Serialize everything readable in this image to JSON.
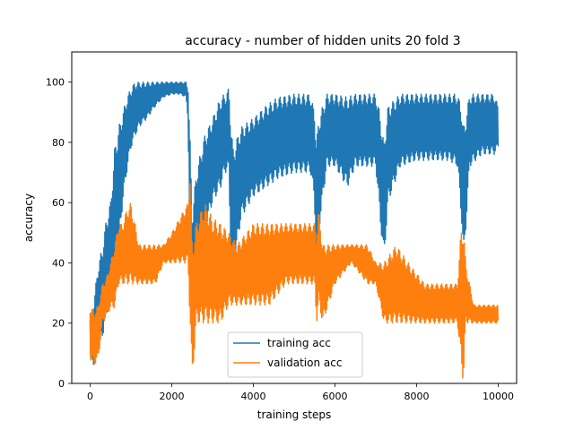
{
  "chart_data": {
    "type": "line",
    "title": "accuracy - number of hidden units 20 fold 3",
    "xlabel": "training steps",
    "ylabel": "accuracy",
    "xlim": [
      -450,
      10450
    ],
    "ylim": [
      0,
      110
    ],
    "xticks": [
      0,
      2000,
      4000,
      6000,
      8000,
      10000
    ],
    "yticks": [
      0,
      20,
      40,
      60,
      80,
      100
    ],
    "grid": false,
    "legend_position": "lower center",
    "series": [
      {
        "name": "training acc",
        "color": "#1f77b4",
        "bands": [
          [
            0,
            8,
            22
          ],
          [
            100,
            6,
            28
          ],
          [
            200,
            10,
            40
          ],
          [
            300,
            15,
            45
          ],
          [
            400,
            22,
            55
          ],
          [
            500,
            28,
            60
          ],
          [
            600,
            35,
            78
          ],
          [
            700,
            45,
            85
          ],
          [
            800,
            60,
            90
          ],
          [
            900,
            70,
            95
          ],
          [
            1000,
            78,
            98
          ],
          [
            1100,
            82,
            100
          ],
          [
            1200,
            85,
            100
          ],
          [
            1400,
            88,
            100
          ],
          [
            1600,
            92,
            100
          ],
          [
            1800,
            95,
            100
          ],
          [
            2000,
            96,
            100
          ],
          [
            2200,
            96,
            100
          ],
          [
            2350,
            95,
            100
          ],
          [
            2400,
            88,
            98
          ],
          [
            2450,
            40,
            80
          ],
          [
            2500,
            22,
            55
          ],
          [
            2600,
            35,
            70
          ],
          [
            2800,
            50,
            82
          ],
          [
            3000,
            60,
            88
          ],
          [
            3200,
            65,
            95
          ],
          [
            3300,
            70,
            96
          ],
          [
            3400,
            70,
            98
          ],
          [
            3450,
            40,
            88
          ],
          [
            3500,
            35,
            78
          ],
          [
            3700,
            55,
            85
          ],
          [
            4000,
            62,
            88
          ],
          [
            4300,
            65,
            92
          ],
          [
            4600,
            68,
            95
          ],
          [
            5000,
            70,
            96
          ],
          [
            5400,
            70,
            96
          ],
          [
            5500,
            60,
            90
          ],
          [
            5550,
            35,
            80
          ],
          [
            5600,
            50,
            88
          ],
          [
            5800,
            72,
            96
          ],
          [
            6000,
            72,
            96
          ],
          [
            6300,
            65,
            95
          ],
          [
            6500,
            72,
            96
          ],
          [
            7000,
            72,
            96
          ],
          [
            7100,
            55,
            90
          ],
          [
            7200,
            40,
            80
          ],
          [
            7300,
            60,
            92
          ],
          [
            7600,
            72,
            96
          ],
          [
            8000,
            74,
            96
          ],
          [
            8400,
            74,
            96
          ],
          [
            8800,
            74,
            96
          ],
          [
            9000,
            72,
            96
          ],
          [
            9100,
            55,
            92
          ],
          [
            9150,
            40,
            85
          ],
          [
            9200,
            50,
            88
          ],
          [
            9300,
            72,
            96
          ],
          [
            9600,
            76,
            96
          ],
          [
            9900,
            76,
            96
          ],
          [
            10000,
            78,
            92
          ]
        ]
      },
      {
        "name": "validation acc",
        "color": "#ff7f0e",
        "bands": [
          [
            0,
            8,
            26
          ],
          [
            100,
            6,
            24
          ],
          [
            200,
            8,
            26
          ],
          [
            300,
            20,
            33
          ],
          [
            400,
            22,
            35
          ],
          [
            500,
            25,
            40
          ],
          [
            600,
            25,
            46
          ],
          [
            700,
            33,
            53
          ],
          [
            800,
            33,
            53
          ],
          [
            900,
            33,
            58
          ],
          [
            1000,
            33,
            60
          ],
          [
            1100,
            33,
            53
          ],
          [
            1200,
            33,
            46
          ],
          [
            1400,
            33,
            46
          ],
          [
            1600,
            33,
            46
          ],
          [
            1800,
            40,
            46
          ],
          [
            2000,
            40,
            50
          ],
          [
            2200,
            40,
            55
          ],
          [
            2400,
            40,
            60
          ],
          [
            2450,
            20,
            73
          ],
          [
            2500,
            0,
            45
          ],
          [
            2600,
            20,
            53
          ],
          [
            2800,
            20,
            60
          ],
          [
            3000,
            20,
            55
          ],
          [
            3200,
            20,
            53
          ],
          [
            3400,
            26,
            50
          ],
          [
            3600,
            26,
            46
          ],
          [
            4000,
            26,
            53
          ],
          [
            4400,
            26,
            53
          ],
          [
            4800,
            33,
            53
          ],
          [
            5200,
            33,
            53
          ],
          [
            5500,
            33,
            53
          ],
          [
            5550,
            20,
            50
          ],
          [
            5600,
            26,
            58
          ],
          [
            5700,
            20,
            46
          ],
          [
            6000,
            33,
            46
          ],
          [
            6400,
            40,
            46
          ],
          [
            6800,
            33,
            46
          ],
          [
            7000,
            33,
            40
          ],
          [
            7200,
            20,
            40
          ],
          [
            7500,
            20,
            46
          ],
          [
            7800,
            20,
            40
          ],
          [
            8200,
            20,
            33
          ],
          [
            8600,
            20,
            33
          ],
          [
            9000,
            20,
            33
          ],
          [
            9100,
            5,
            53
          ],
          [
            9150,
            0,
            53
          ],
          [
            9200,
            20,
            40
          ],
          [
            9400,
            20,
            26
          ],
          [
            9800,
            20,
            26
          ],
          [
            10000,
            20,
            26
          ]
        ]
      }
    ]
  }
}
